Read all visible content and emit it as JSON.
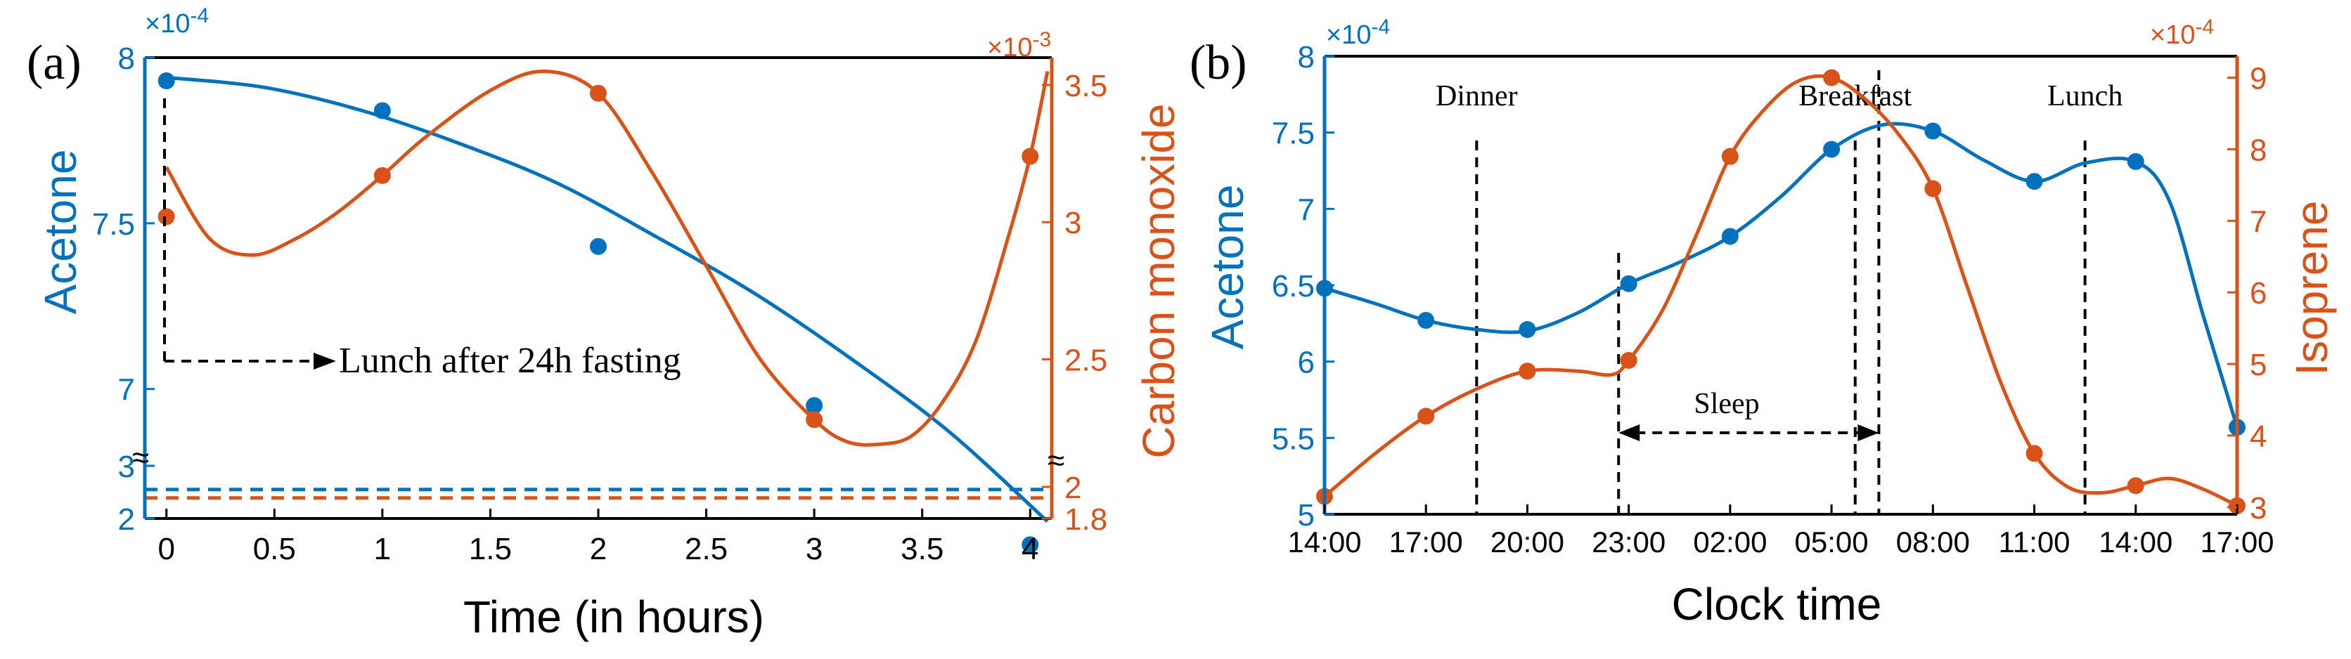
{
  "colors": {
    "acetone": "#0072BD",
    "secondary": "#D95319",
    "axis": "#000000"
  },
  "chart_data": [
    {
      "panel": "(a)",
      "type": "line",
      "xlabel": "Time (in hours)",
      "left_ylabel": "Acetone",
      "right_ylabel": "Carbon monoxide",
      "left_exponent": "×10",
      "left_exponent_power": "-4",
      "right_exponent": "×10",
      "right_exponent_power": "-3",
      "xlim": [
        -0.1,
        4.1
      ],
      "xticks": [
        0,
        0.5,
        1,
        1.5,
        2,
        2.5,
        3,
        3.5,
        4
      ],
      "xtick_labels": [
        "0",
        "0.5",
        "1",
        "1.5",
        "2",
        "2.5",
        "3",
        "3.5",
        "4"
      ],
      "left_ylim_upper": [
        6.8,
        8.0
      ],
      "left_ylim_lower": [
        2,
        3.2
      ],
      "left_ticks_upper": [
        "8",
        "7.5",
        "7"
      ],
      "left_ticks_upper_values": [
        8,
        7.5,
        7
      ],
      "left_ticks_lower": [
        "3",
        "2"
      ],
      "left_ticks_lower_values": [
        3,
        2
      ],
      "right_ylim_upper": [
        2.15,
        3.6
      ],
      "right_ylim_lower": [
        1.8,
        2.2
      ],
      "right_ticks_upper": [
        "3.5",
        "3",
        "2.5"
      ],
      "right_ticks_upper_values": [
        3.5,
        3,
        2.5
      ],
      "right_ticks_lower": [
        "2",
        "1.8"
      ],
      "right_ticks_lower_values": [
        2,
        1.8
      ],
      "break_symbol": "≈",
      "annotation": "Lunch after 24h fasting",
      "series": [
        {
          "name": "Acetone",
          "axis": "left",
          "x": [
            0,
            1,
            2,
            3,
            4
          ],
          "values": [
            7.93,
            7.84,
            7.43,
            6.95,
            6.53
          ],
          "fit": [
            7.94,
            7.91,
            7.84,
            7.74,
            7.62,
            7.46,
            7.29,
            7.09,
            6.87,
            6.6
          ]
        },
        {
          "name": "Carbon monoxide",
          "axis": "right",
          "x": [
            0,
            1,
            2,
            3,
            4
          ],
          "values": [
            3.02,
            3.17,
            3.47,
            2.28,
            3.24
          ],
          "fit_x": [
            0,
            0.2,
            0.4,
            0.6,
            0.8,
            1.0,
            1.2,
            1.5,
            1.75,
            2.0,
            2.25,
            2.5,
            2.75,
            3.0,
            3.15,
            3.3,
            3.45,
            3.6,
            3.75,
            3.9,
            4.0,
            4.08
          ],
          "fit": [
            3.2,
            2.94,
            2.88,
            2.94,
            3.04,
            3.17,
            3.31,
            3.48,
            3.55,
            3.47,
            3.18,
            2.84,
            2.5,
            2.28,
            2.2,
            2.19,
            2.22,
            2.35,
            2.57,
            2.95,
            3.24,
            3.55
          ]
        },
        {
          "name": "Acetone baseline",
          "axis": "left",
          "style": "dashed",
          "value": 2.55
        },
        {
          "name": "CO baseline",
          "axis": "right",
          "style": "dashed",
          "value": 1.93
        }
      ]
    },
    {
      "panel": "(b)",
      "type": "line",
      "xlabel": "Clock time",
      "left_ylabel": "Acetone",
      "right_ylabel": "Isoprene",
      "left_exponent": "×10",
      "left_exponent_power": "-4",
      "right_exponent": "×10",
      "right_exponent_power": "-4",
      "xlim": [
        14,
        41
      ],
      "xticks": [
        14,
        17,
        20,
        23,
        26,
        29,
        32,
        35,
        38,
        41
      ],
      "xtick_labels": [
        "14:00",
        "17:00",
        "20:00",
        "23:00",
        "02:00",
        "05:00",
        "08:00",
        "11:00",
        "14:00",
        "17:00"
      ],
      "left_ylim": [
        5,
        8
      ],
      "left_ticks": [
        "8",
        "7.5",
        "7",
        "6.5",
        "6",
        "5.5",
        "5"
      ],
      "left_ticks_values": [
        8,
        7.5,
        7,
        6.5,
        6,
        5.5,
        5
      ],
      "right_ylim": [
        2.9,
        9.3
      ],
      "right_ticks": [
        "9",
        "8",
        "7",
        "6",
        "5",
        "4",
        "3"
      ],
      "right_ticks_values": [
        9,
        8,
        7,
        6,
        5,
        4,
        3
      ],
      "events": [
        {
          "label": "Dinner",
          "x": 18.5
        },
        {
          "label": "Breakfast",
          "x": 29.7
        },
        {
          "label": "Lunch",
          "x": 36.5
        }
      ],
      "sleep": {
        "label": "Sleep",
        "start": 22.7,
        "end": 30.4
      },
      "series": [
        {
          "name": "Acetone",
          "axis": "left",
          "x": [
            14,
            17,
            20,
            23,
            26,
            29,
            32,
            35,
            38,
            41
          ],
          "values": [
            6.48,
            6.27,
            6.21,
            6.51,
            6.82,
            7.39,
            7.51,
            7.18,
            7.31,
            5.57
          ],
          "fit_x": [
            14,
            15.5,
            17,
            18.5,
            20,
            21.5,
            23,
            24.5,
            26,
            27.5,
            29,
            30.5,
            32,
            33.5,
            35,
            36.5,
            38,
            39,
            40,
            41
          ],
          "fit": [
            6.48,
            6.38,
            6.27,
            6.21,
            6.2,
            6.32,
            6.51,
            6.65,
            6.82,
            7.08,
            7.39,
            7.55,
            7.51,
            7.32,
            7.18,
            7.3,
            7.31,
            7.05,
            6.3,
            5.57
          ]
        },
        {
          "name": "Isoprene",
          "axis": "right",
          "x": [
            14,
            17,
            20,
            23,
            26,
            29,
            32,
            35,
            38,
            41
          ],
          "values": [
            3.15,
            4.27,
            4.9,
            5.05,
            7.9,
            9.0,
            7.45,
            3.75,
            3.3,
            3.02
          ],
          "fit_x": [
            14,
            15.5,
            17,
            18.5,
            20,
            21.5,
            22.5,
            23,
            24,
            25,
            26,
            27,
            28,
            29,
            30,
            31,
            32,
            33,
            34,
            35,
            36,
            37,
            38,
            39,
            40,
            41
          ],
          "fit": [
            3.15,
            3.75,
            4.27,
            4.65,
            4.9,
            4.9,
            4.85,
            5.05,
            5.75,
            6.8,
            7.9,
            8.55,
            8.95,
            9.0,
            8.7,
            8.2,
            7.45,
            6.1,
            4.75,
            3.75,
            3.28,
            3.2,
            3.3,
            3.4,
            3.25,
            3.02
          ]
        }
      ]
    }
  ]
}
